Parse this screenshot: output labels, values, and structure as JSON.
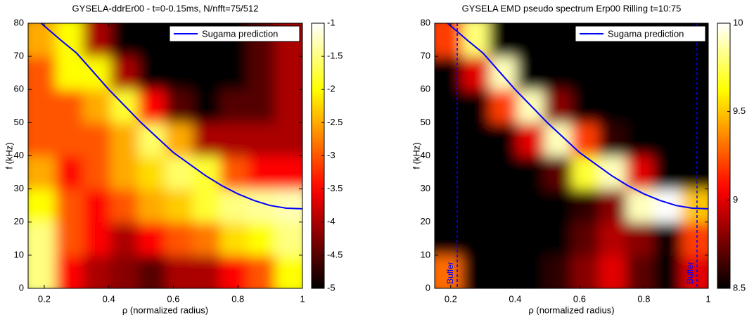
{
  "chart_data": [
    {
      "type": "heatmap",
      "title": "GYSELA-ddrEr00 - t=0-0.15ms, N/nfft=75/512",
      "xlabel": "ρ (normalized radius)",
      "ylabel": "f (kHz)",
      "xlim": [
        0.15,
        1
      ],
      "ylim": [
        0,
        80
      ],
      "xticks": [
        0.2,
        0.4,
        0.6,
        0.8,
        1
      ],
      "yticks": [
        0,
        10,
        20,
        30,
        40,
        50,
        60,
        70,
        80
      ],
      "colormap": "hot",
      "zlim": [
        -5,
        -1
      ],
      "zticks": [
        -1,
        -1.5,
        -2,
        -2.5,
        -3,
        -3.5,
        -4,
        -4.5,
        -5
      ],
      "x": [
        0.1925,
        0.2775,
        0.3625,
        0.4475,
        0.5325,
        0.6175,
        0.7025,
        0.7875,
        0.8725,
        0.9575
      ],
      "y": [
        5,
        15,
        25,
        35,
        45,
        55,
        65,
        75
      ],
      "z": [
        [
          -1.5,
          -3.5,
          -4,
          -4.2,
          -4.5,
          -4,
          -4,
          -3.5,
          -3,
          -2
        ],
        [
          -1.5,
          -3,
          -3.5,
          -4,
          -3.5,
          -3,
          -2.8,
          -2.2,
          -2,
          -1.5
        ],
        [
          -2,
          -3,
          -3.5,
          -3,
          -2.5,
          -2.3,
          -1.8,
          -1.5,
          -1.4,
          -1.3
        ],
        [
          -2.5,
          -3.5,
          -3,
          -2.5,
          -2.2,
          -1.6,
          -1.8,
          -3,
          -3.5,
          -3.5
        ],
        [
          -3,
          -3,
          -3,
          -2.5,
          -1.6,
          -2.5,
          -4,
          -4,
          -4,
          -4
        ],
        [
          -3,
          -3,
          -2.5,
          -1.8,
          -3.5,
          -4.5,
          -5,
          -4.5,
          -4.5,
          -4
        ],
        [
          -3,
          -2,
          -2,
          -4,
          -5,
          -5,
          -5,
          -5,
          -4.5,
          -4
        ],
        [
          -2.5,
          -2,
          -4,
          -5,
          -5,
          -5,
          -5,
          -5,
          -4.5,
          -4
        ]
      ],
      "legend": "upper right",
      "series": [
        {
          "name": "Sugama prediction",
          "color": "#0000ff",
          "x": [
            0.19,
            0.25,
            0.3,
            0.35,
            0.4,
            0.45,
            0.5,
            0.55,
            0.6,
            0.65,
            0.7,
            0.75,
            0.8,
            0.85,
            0.9,
            0.95,
            1
          ],
          "values": [
            80,
            75,
            71,
            65.5,
            60,
            55,
            50,
            45.5,
            41,
            37.5,
            34,
            31,
            28.5,
            26.5,
            25,
            24.2,
            24
          ]
        }
      ]
    },
    {
      "type": "heatmap",
      "title": "GYSELA EMD pseudo spectrum Erp00 Rilling t=10:75",
      "xlabel": "ρ (normalized radius)",
      "ylabel": "f (kHz)",
      "xlim": [
        0.15,
        1
      ],
      "ylim": [
        0,
        80
      ],
      "xticks": [
        0.2,
        0.4,
        0.6,
        0.8,
        1
      ],
      "yticks": [
        0,
        10,
        20,
        30,
        40,
        50,
        60,
        70,
        80
      ],
      "colormap": "hot",
      "zlim": [
        8.5,
        10
      ],
      "zticks": [
        8.5,
        9,
        9.5,
        10
      ],
      "x": [
        0.1925,
        0.2775,
        0.3625,
        0.4475,
        0.5325,
        0.6175,
        0.7025,
        0.7875,
        0.8725,
        0.9575
      ],
      "y": [
        5,
        15,
        25,
        35,
        45,
        55,
        65,
        75
      ],
      "z": [
        [
          9.3,
          8.5,
          8.5,
          8.5,
          8.6,
          8.8,
          9.0,
          8.7,
          8.5,
          9.0
        ],
        [
          8.5,
          8.5,
          8.5,
          8.5,
          8.5,
          8.7,
          8.9,
          8.8,
          8.5,
          9.2
        ],
        [
          8.5,
          8.5,
          8.5,
          8.5,
          8.5,
          8.6,
          8.8,
          9.9,
          10,
          9.5
        ],
        [
          8.5,
          8.5,
          8.5,
          8.5,
          8.7,
          9.7,
          9.9,
          9.0,
          8.5,
          8.5
        ],
        [
          8.5,
          8.5,
          8.5,
          9.0,
          9.9,
          9.2,
          8.6,
          8.5,
          8.5,
          8.5
        ],
        [
          8.5,
          8.5,
          9.2,
          9.9,
          8.8,
          8.5,
          8.5,
          8.5,
          8.5,
          8.5
        ],
        [
          8.5,
          9.0,
          9.9,
          8.5,
          8.5,
          8.5,
          8.5,
          8.5,
          8.5,
          8.5
        ],
        [
          9.2,
          9.8,
          8.5,
          8.5,
          8.5,
          8.5,
          8.5,
          8.5,
          8.5,
          8.5
        ]
      ],
      "vlines": [
        {
          "x": 0.22,
          "label": "Buffer"
        },
        {
          "x": 0.965,
          "label": "Buffer"
        }
      ],
      "vline_color": "#0000ff",
      "legend": "upper right",
      "series": [
        {
          "name": "Sugama prediction",
          "color": "#0000ff",
          "x": [
            0.19,
            0.25,
            0.3,
            0.35,
            0.4,
            0.45,
            0.5,
            0.55,
            0.6,
            0.65,
            0.7,
            0.75,
            0.8,
            0.85,
            0.9,
            0.95,
            1
          ],
          "values": [
            80,
            75,
            71,
            65.5,
            60,
            55,
            50,
            45.5,
            41,
            37.5,
            34,
            31,
            28.5,
            26.5,
            25,
            24.2,
            24
          ]
        }
      ]
    }
  ]
}
